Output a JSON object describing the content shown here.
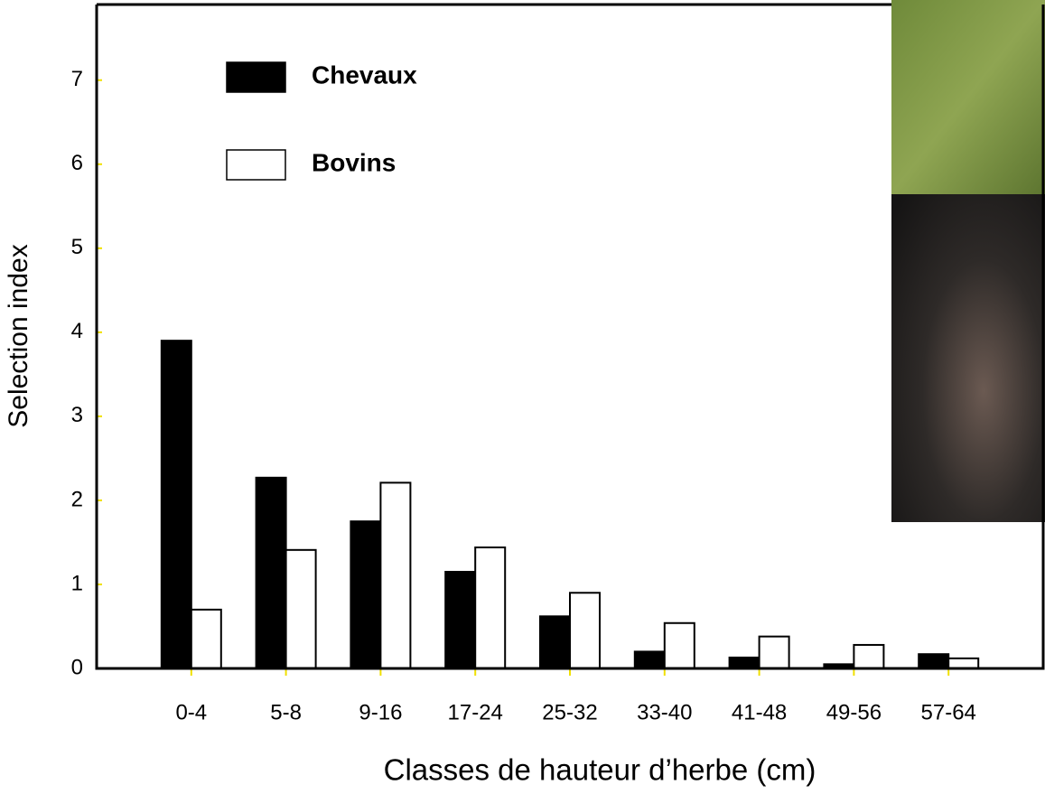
{
  "chart_data": {
    "type": "bar",
    "xlabel": "Classes de hauteur d’herbe (cm)",
    "ylabel": "Selection index",
    "categories": [
      "0-4",
      "5-8",
      "9-16",
      "17-24",
      "25-32",
      "33-40",
      "41-48",
      "49-56",
      "57-64"
    ],
    "series": [
      {
        "name": "Chevaux",
        "color": "#000000",
        "values": [
          3.9,
          2.27,
          1.75,
          1.15,
          0.62,
          0.2,
          0.13,
          0.05,
          0.17
        ]
      },
      {
        "name": "Bovins",
        "color": "#ffffff",
        "values": [
          0.7,
          1.41,
          2.21,
          1.44,
          0.9,
          0.54,
          0.38,
          0.28,
          0.12
        ]
      }
    ],
    "ylim": [
      0,
      7.9
    ],
    "yticks": [
      0,
      1,
      2,
      3,
      4,
      5,
      6,
      7
    ],
    "grid": false,
    "legend": "upper left"
  }
}
